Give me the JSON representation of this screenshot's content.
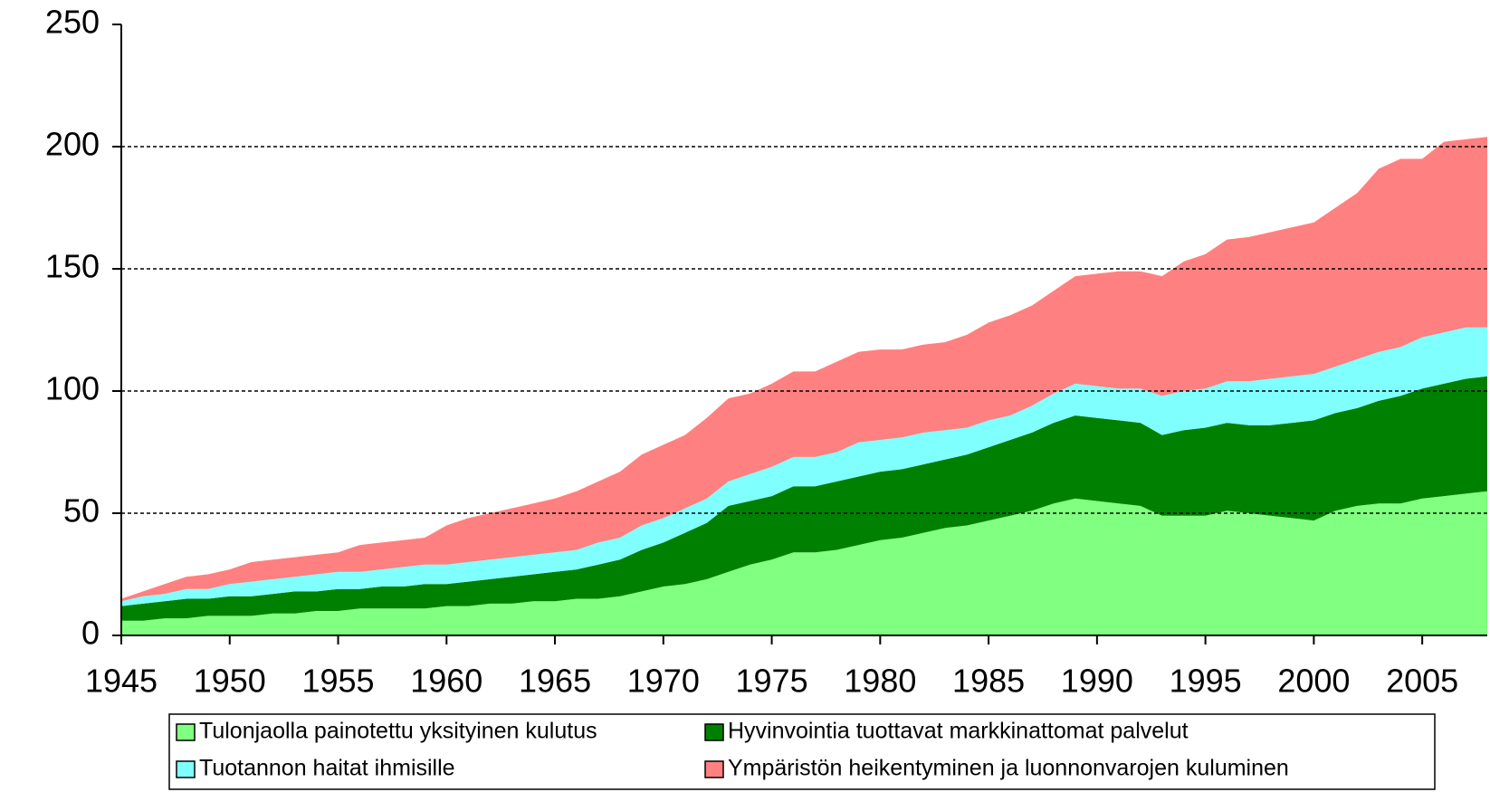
{
  "chart_data": {
    "type": "stacked_area",
    "x": [
      1945,
      1946,
      1947,
      1948,
      1949,
      1950,
      1951,
      1952,
      1953,
      1954,
      1955,
      1956,
      1957,
      1958,
      1959,
      1960,
      1961,
      1962,
      1963,
      1964,
      1965,
      1966,
      1967,
      1968,
      1969,
      1970,
      1971,
      1972,
      1973,
      1974,
      1975,
      1976,
      1977,
      1978,
      1979,
      1980,
      1981,
      1982,
      1983,
      1984,
      1985,
      1986,
      1987,
      1988,
      1989,
      1990,
      1991,
      1992,
      1993,
      1994,
      1995,
      1996,
      1997,
      1998,
      1999,
      2000,
      2001,
      2002,
      2003,
      2004,
      2005,
      2006,
      2007,
      2008
    ],
    "series": [
      {
        "name": "Tulonjaolla painotettu yksityinen kulutus",
        "color": "#80ff80",
        "values": [
          6,
          6,
          7,
          7,
          8,
          8,
          8,
          9,
          9,
          10,
          10,
          11,
          11,
          11,
          11,
          12,
          12,
          13,
          13,
          14,
          14,
          15,
          15,
          16,
          18,
          20,
          21,
          23,
          26,
          29,
          31,
          34,
          34,
          35,
          37,
          39,
          40,
          42,
          44,
          45,
          47,
          49,
          51,
          54,
          56,
          55,
          54,
          53,
          49,
          49,
          49,
          51,
          50,
          49,
          48,
          47,
          51,
          53,
          54,
          54,
          56,
          57,
          58,
          59
        ]
      },
      {
        "name": "Hyvinvointia tuottavat markkinattomat palvelut",
        "color": "#008000",
        "values": [
          6,
          7,
          7,
          8,
          7,
          8,
          8,
          8,
          9,
          8,
          9,
          8,
          9,
          9,
          10,
          9,
          10,
          10,
          11,
          11,
          12,
          12,
          14,
          15,
          17,
          18,
          21,
          23,
          27,
          26,
          26,
          27,
          27,
          28,
          28,
          28,
          28,
          28,
          28,
          29,
          30,
          31,
          32,
          33,
          34,
          34,
          34,
          34,
          33,
          35,
          36,
          36,
          36,
          37,
          39,
          41,
          40,
          40,
          42,
          44,
          45,
          46,
          47,
          47
        ]
      },
      {
        "name": "Tuotannon haitat ihmisille",
        "color": "#80ffff",
        "values": [
          2,
          3,
          3,
          4,
          4,
          5,
          6,
          6,
          6,
          7,
          7,
          7,
          7,
          8,
          8,
          8,
          8,
          8,
          8,
          8,
          8,
          8,
          9,
          9,
          10,
          10,
          10,
          10,
          10,
          11,
          12,
          12,
          12,
          12,
          14,
          13,
          13,
          13,
          12,
          11,
          11,
          10,
          11,
          12,
          13,
          13,
          13,
          14,
          16,
          16,
          16,
          17,
          18,
          19,
          19,
          19,
          19,
          20,
          20,
          20,
          21,
          21,
          21,
          20
        ]
      },
      {
        "name": "Ympäristön heikentyminen ja luonnonvarojen kuluminen",
        "color": "#ff8080",
        "values": [
          1,
          2,
          4,
          5,
          6,
          6,
          8,
          8,
          8,
          8,
          8,
          11,
          11,
          11,
          11,
          16,
          18,
          19,
          20,
          21,
          22,
          24,
          25,
          27,
          29,
          30,
          30,
          33,
          34,
          33,
          34,
          35,
          35,
          37,
          37,
          37,
          36,
          36,
          36,
          38,
          40,
          41,
          41,
          42,
          44,
          46,
          48,
          48,
          49,
          53,
          55,
          58,
          59,
          60,
          61,
          62,
          65,
          68,
          75,
          77,
          73,
          78,
          77,
          78
        ]
      }
    ],
    "xlim": [
      1945,
      2008
    ],
    "xticks": [
      1945,
      1950,
      1955,
      1960,
      1965,
      1970,
      1975,
      1980,
      1985,
      1990,
      1995,
      2000,
      2005
    ],
    "ylim": [
      0,
      250
    ],
    "yticks": [
      0,
      50,
      100,
      150,
      200,
      250
    ],
    "grid": true
  }
}
